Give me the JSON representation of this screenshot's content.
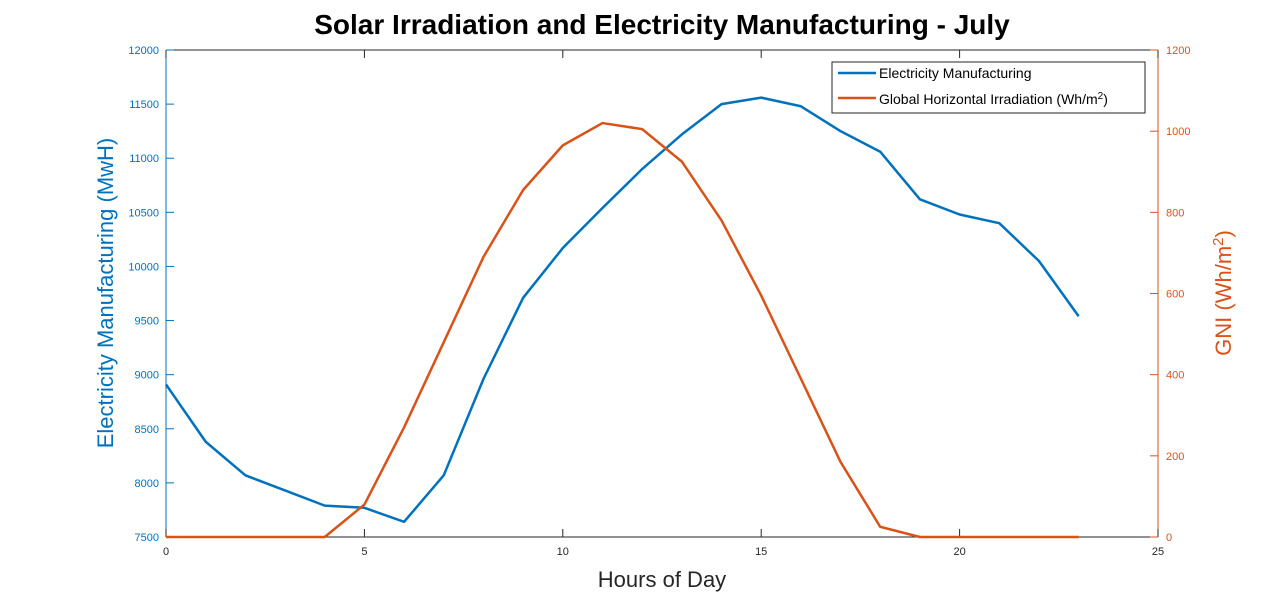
{
  "chart_data": {
    "type": "line",
    "title": "Solar Irradiation and Electricity Manufacturing - July",
    "xlabel": "Hours of Day",
    "xlim": [
      0,
      25
    ],
    "x_ticks": [
      "0",
      "5",
      "10",
      "15",
      "20",
      "25"
    ],
    "ylabel_left": "Electricity Manufacturing (MwH)",
    "ylim_left": [
      7500,
      12000
    ],
    "y_ticks_left": [
      "7500",
      "8000",
      "8500",
      "9000",
      "9500",
      "10000",
      "10500",
      "11000",
      "11500",
      "12000"
    ],
    "ylabel_right": {
      "base": "GNI (Wh/m",
      "sup": "2",
      "end": ")"
    },
    "ylim_right": [
      0,
      1200
    ],
    "y_ticks_right": [
      "0",
      "200",
      "400",
      "600",
      "800",
      "1000",
      "1200"
    ],
    "grid": false,
    "legend_position": "top-right",
    "x": [
      0,
      1,
      2,
      3,
      4,
      5,
      6,
      7,
      8,
      9,
      10,
      11,
      12,
      13,
      14,
      15,
      16,
      17,
      18,
      19,
      20,
      21,
      22,
      23
    ],
    "series": [
      {
        "name": "Electricity Manufacturing",
        "axis": "left",
        "color": "#0072BD",
        "values": [
          8910,
          8380,
          8070,
          7930,
          7790,
          7770,
          7640,
          8070,
          8960,
          9710,
          10170,
          10540,
          10900,
          11220,
          11500,
          11560,
          11480,
          11250,
          11060,
          10620,
          10480,
          10400,
          10050,
          9540
        ]
      },
      {
        "name": "Global Horizontal Irradiation (Wh/m",
        "name_sup": "2",
        "name_end": ")",
        "axis": "right",
        "color": "#D95319",
        "values": [
          0,
          0,
          0,
          0,
          0,
          80,
          270,
          480,
          690,
          855,
          965,
          1020,
          1005,
          925,
          780,
          595,
          390,
          185,
          25,
          0,
          0,
          0,
          0,
          0
        ]
      }
    ]
  }
}
